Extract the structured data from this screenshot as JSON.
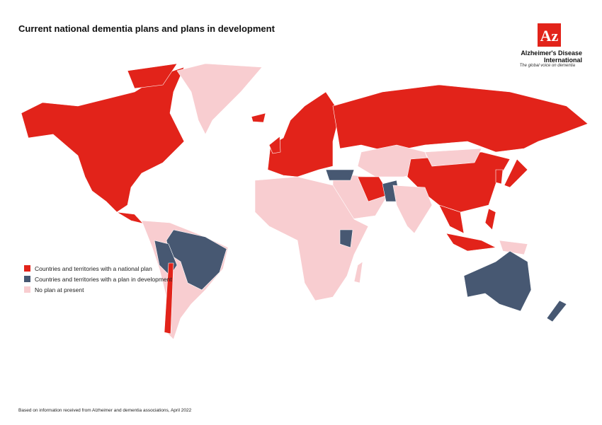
{
  "header": {
    "title": "Current national dementia plans and plans in development"
  },
  "logo": {
    "mark": "Az",
    "name_line1": "Alzheimer's Disease",
    "name_line2": "International",
    "tagline": "The global voice on dementia",
    "color": "#e2231a"
  },
  "legend": {
    "items": [
      {
        "label": "Countries and territories with a national plan",
        "color": "#e2231a"
      },
      {
        "label": "Countries and territories with a plan in development",
        "color": "#475872"
      },
      {
        "label": "No plan at present",
        "color": "#f8cdd0"
      }
    ]
  },
  "footnote": "Based on information received from Alzheimer and dementia associations, April 2022"
}
